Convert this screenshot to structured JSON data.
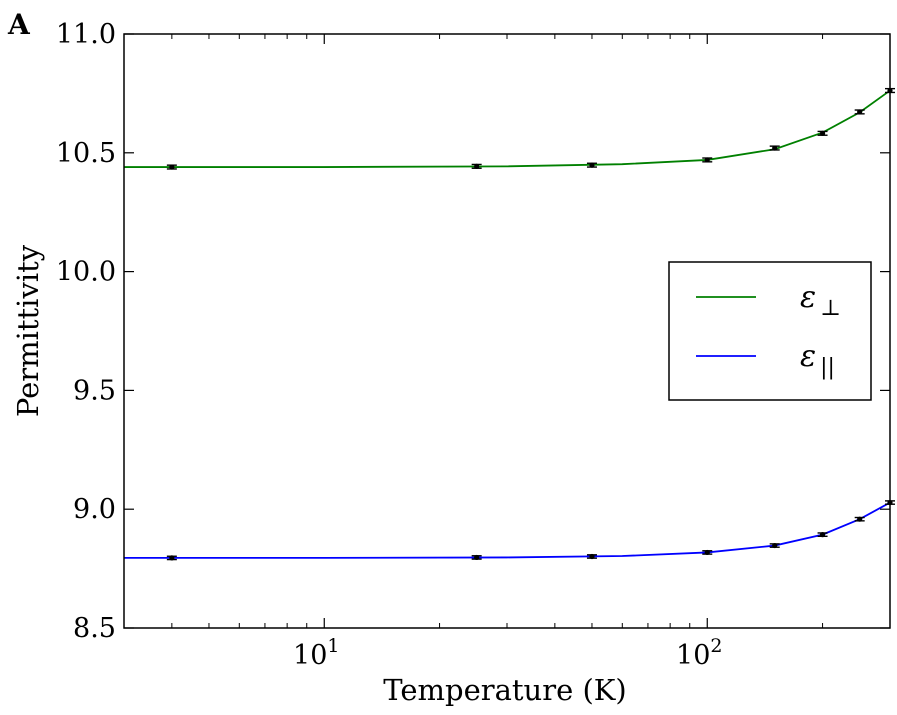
{
  "panel_label": "A",
  "chart_data": {
    "type": "line",
    "title": "",
    "xlabel": "Temperature (K)",
    "ylabel": "Permittivity",
    "xscale": "log",
    "xlim": [
      3,
      300
    ],
    "ylim": [
      8.5,
      11.0
    ],
    "grid": false,
    "legend_position": "right",
    "y_ticks": [
      "8.5",
      "9.0",
      "9.5",
      "10.0",
      "10.5",
      "11.0"
    ],
    "x_ticks": [
      {
        "value": 10,
        "base": "10",
        "exp": "1"
      },
      {
        "value": 100,
        "base": "10",
        "exp": "2"
      }
    ],
    "series": [
      {
        "name": "ε⊥",
        "legend_base": "ε",
        "legend_sub": "⊥",
        "color": "#008000",
        "points": [
          {
            "x": 4,
            "y": 10.44,
            "err": 0.008
          },
          {
            "x": 25,
            "y": 10.443,
            "err": 0.008
          },
          {
            "x": 50,
            "y": 10.448,
            "err": 0.008
          },
          {
            "x": 100,
            "y": 10.47,
            "err": 0.008
          },
          {
            "x": 150,
            "y": 10.52,
            "err": 0.008
          },
          {
            "x": 200,
            "y": 10.582,
            "err": 0.008
          },
          {
            "x": 250,
            "y": 10.672,
            "err": 0.008
          },
          {
            "x": 300,
            "y": 10.762,
            "err": 0.008
          }
        ],
        "curve": [
          [
            3,
            10.44
          ],
          [
            10,
            10.44
          ],
          [
            30,
            10.443
          ],
          [
            60,
            10.452
          ],
          [
            100,
            10.47
          ],
          [
            150,
            10.515
          ],
          [
            200,
            10.585
          ],
          [
            250,
            10.67
          ],
          [
            300,
            10.762
          ]
        ]
      },
      {
        "name": "ε||",
        "legend_base": "ε",
        "legend_sub": "||",
        "color": "#0000ff",
        "points": [
          {
            "x": 4,
            "y": 8.795,
            "err": 0.007
          },
          {
            "x": 25,
            "y": 8.797,
            "err": 0.007
          },
          {
            "x": 50,
            "y": 8.801,
            "err": 0.007
          },
          {
            "x": 100,
            "y": 8.818,
            "err": 0.007
          },
          {
            "x": 150,
            "y": 8.847,
            "err": 0.007
          },
          {
            "x": 200,
            "y": 8.893,
            "err": 0.007
          },
          {
            "x": 250,
            "y": 8.958,
            "err": 0.007
          },
          {
            "x": 300,
            "y": 9.028,
            "err": 0.007
          }
        ],
        "curve": [
          [
            3,
            8.795
          ],
          [
            10,
            8.795
          ],
          [
            30,
            8.797
          ],
          [
            60,
            8.803
          ],
          [
            100,
            8.818
          ],
          [
            150,
            8.847
          ],
          [
            200,
            8.893
          ],
          [
            250,
            8.958
          ],
          [
            300,
            9.028
          ]
        ]
      }
    ]
  }
}
